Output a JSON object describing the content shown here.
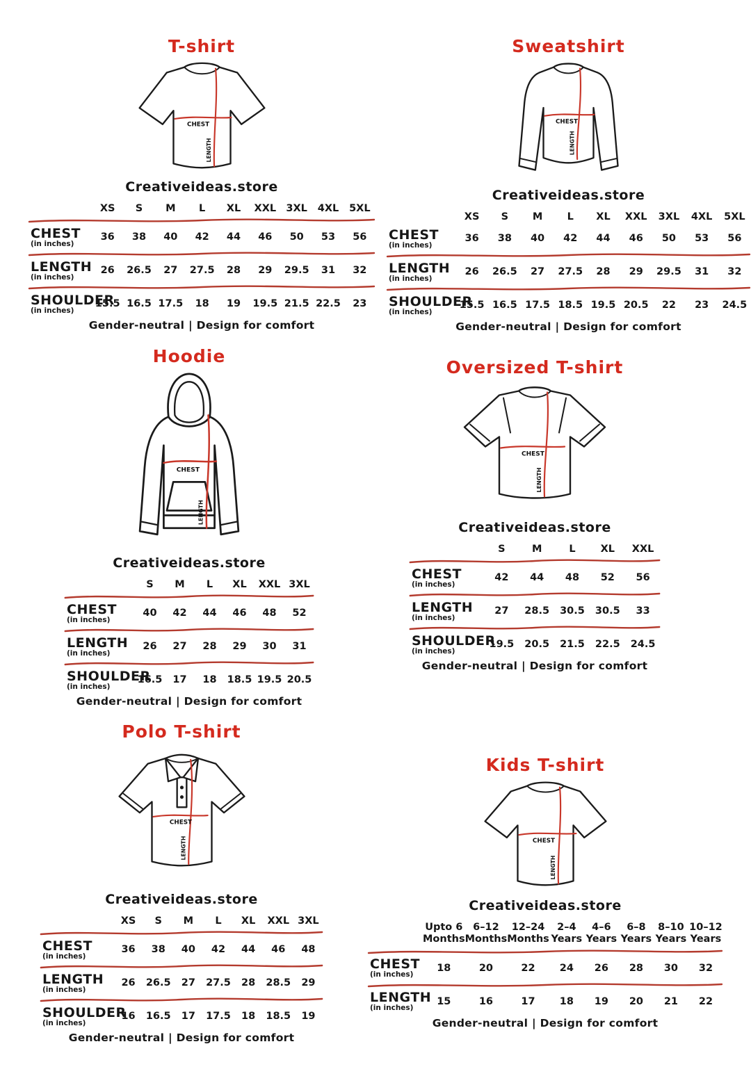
{
  "page": {
    "background": "#ffffff"
  },
  "colors": {
    "title_red": "#d42a1e",
    "divider_red": "#b43b2e",
    "measure_line_red": "#c8372a",
    "ink_black": "#1b1b1b"
  },
  "garment_labels": {
    "chest": "CHEST",
    "length": "LENGTH"
  },
  "sections": [
    {
      "id": "tshirt",
      "title": "T-shirt",
      "store": "Creativeideas.store",
      "sizes": [
        "XS",
        "S",
        "M",
        "L",
        "XL",
        "XXL",
        "3XL",
        "4XL",
        "5XL"
      ],
      "rows": [
        {
          "label": "CHEST",
          "sub": "(in inches)",
          "line_above": true,
          "values": [
            "36",
            "38",
            "40",
            "42",
            "44",
            "46",
            "50",
            "53",
            "56"
          ]
        },
        {
          "label": "LENGTH",
          "sub": "(in inches)",
          "line_above": true,
          "values": [
            "26",
            "26.5",
            "27",
            "27.5",
            "28",
            "29",
            "29.5",
            "31",
            "32"
          ]
        },
        {
          "label": "SHOULDER",
          "sub": "(in inches)",
          "line_above": true,
          "values": [
            "15.5",
            "16.5",
            "17.5",
            "18",
            "19",
            "19.5",
            "21.5",
            "22.5",
            "23"
          ]
        }
      ],
      "footer": "Gender-neutral | Design for comfort"
    },
    {
      "id": "sweatshirt",
      "title": "Sweatshirt",
      "store": "Creativeideas.store",
      "sizes": [
        "XS",
        "S",
        "M",
        "L",
        "XL",
        "XXL",
        "3XL",
        "4XL",
        "5XL"
      ],
      "rows": [
        {
          "label": "CHEST",
          "sub": "(in inches)",
          "line_above": false,
          "values": [
            "36",
            "38",
            "40",
            "42",
            "44",
            "46",
            "50",
            "53",
            "56"
          ]
        },
        {
          "label": "LENGTH",
          "sub": "(in inches)",
          "line_above": true,
          "values": [
            "26",
            "26.5",
            "27",
            "27.5",
            "28",
            "29",
            "29.5",
            "31",
            "32"
          ]
        },
        {
          "label": "SHOULDER",
          "sub": "(in inches)",
          "line_above": true,
          "values": [
            "15.5",
            "16.5",
            "17.5",
            "18.5",
            "19.5",
            "20.5",
            "22",
            "23",
            "24.5"
          ]
        }
      ],
      "footer": "Gender-neutral | Design for comfort"
    },
    {
      "id": "hoodie",
      "title": "Hoodie",
      "store": "Creativeideas.store",
      "sizes": [
        "S",
        "M",
        "L",
        "XL",
        "XXL",
        "3XL"
      ],
      "rows": [
        {
          "label": "CHEST",
          "sub": "(in inches)",
          "line_above": true,
          "values": [
            "40",
            "42",
            "44",
            "46",
            "48",
            "52"
          ]
        },
        {
          "label": "LENGTH",
          "sub": "(in inches)",
          "line_above": true,
          "values": [
            "26",
            "27",
            "28",
            "29",
            "30",
            "31"
          ]
        },
        {
          "label": "SHOULDER",
          "sub": "(in inches)",
          "line_above": true,
          "values": [
            "16.5",
            "17",
            "18",
            "18.5",
            "19.5",
            "20.5"
          ]
        }
      ],
      "footer": "Gender-neutral | Design for comfort"
    },
    {
      "id": "oversized",
      "title": "Oversized T-shirt",
      "store": "Creativeideas.store",
      "sizes": [
        "S",
        "M",
        "L",
        "XL",
        "XXL"
      ],
      "rows": [
        {
          "label": "CHEST",
          "sub": "(in inches)",
          "line_above": true,
          "values": [
            "42",
            "44",
            "48",
            "52",
            "56"
          ]
        },
        {
          "label": "LENGTH",
          "sub": "(in inches)",
          "line_above": true,
          "values": [
            "27",
            "28.5",
            "30.5",
            "30.5",
            "33"
          ]
        },
        {
          "label": "SHOULDER",
          "sub": "(in inches)",
          "line_above": true,
          "values": [
            "19.5",
            "20.5",
            "21.5",
            "22.5",
            "24.5"
          ]
        }
      ],
      "footer": "Gender-neutral | Design for comfort"
    },
    {
      "id": "polo",
      "title": "Polo T-shirt",
      "store": "Creativeideas.store",
      "sizes": [
        "XS",
        "S",
        "M",
        "L",
        "XL",
        "XXL",
        "3XL"
      ],
      "rows": [
        {
          "label": "CHEST",
          "sub": "(in inches)",
          "line_above": true,
          "values": [
            "36",
            "38",
            "40",
            "42",
            "44",
            "46",
            "48"
          ]
        },
        {
          "label": "LENGTH",
          "sub": "(in inches)",
          "line_above": true,
          "values": [
            "26",
            "26.5",
            "27",
            "27.5",
            "28",
            "28.5",
            "29"
          ]
        },
        {
          "label": "SHOULDER",
          "sub": "(in inches)",
          "line_above": true,
          "values": [
            "16",
            "16.5",
            "17",
            "17.5",
            "18",
            "18.5",
            "19"
          ]
        }
      ],
      "footer": "Gender-neutral | Design for comfort"
    },
    {
      "id": "kids",
      "title": "Kids T-shirt",
      "store": "Creativeideas.store",
      "sizes": [
        "Upto 6\nMonths",
        "6–12\nMonths",
        "12–24\nMonths",
        "2–4\nYears",
        "4–6\nYears",
        "6–8\nYears",
        "8–10\nYears",
        "10–12\nYears"
      ],
      "rows": [
        {
          "label": "CHEST",
          "sub": "(in inches)",
          "line_above": true,
          "values": [
            "18",
            "20",
            "22",
            "24",
            "26",
            "28",
            "30",
            "32"
          ]
        },
        {
          "label": "LENGTH",
          "sub": "(in inches)",
          "line_above": true,
          "values": [
            "15",
            "16",
            "17",
            "18",
            "19",
            "20",
            "21",
            "22"
          ]
        }
      ],
      "footer": "Gender-neutral | Design for comfort"
    }
  ]
}
